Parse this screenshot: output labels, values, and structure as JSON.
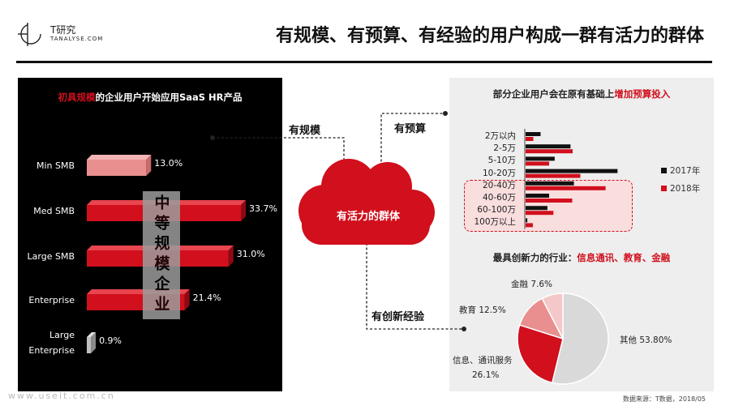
{
  "brand": {
    "name": "T研究",
    "sub": "TANALYSE.COM"
  },
  "page_title": "有规模、有预算、有经验的用户构成一群有活力的群体",
  "colors": {
    "accent": "#d10f1d",
    "series_2017": "#111111",
    "series_2018": "#d10f1d",
    "light_bar": "#e98f90",
    "pie_gray": "#d9d9d9",
    "pie_pink": "#f4c8c9"
  },
  "left_panel": {
    "title_highlight": "初具规模",
    "title_rest": "的企业用户开始应用SaaS HR产品",
    "mid_label": "中等规模企业"
  },
  "cloud": {
    "label": "有活力的群体"
  },
  "connectors": {
    "scale": "有规模",
    "budget": "有预算",
    "experience": "有创新经验"
  },
  "right_panel": {
    "bar_title_prefix": "部分企业用户会在原有基础上",
    "bar_title_highlight": "增加预算投入",
    "pie_title_prefix": "最具创新力的行业：",
    "pie_title_highlight": "信息通讯、教育、金融"
  },
  "chart_data": [
    {
      "type": "bar",
      "orientation": "horizontal",
      "categories": [
        "Min SMB",
        "Med SMB",
        "Large SMB",
        "Enterprise",
        "Large Enterprise"
      ],
      "category_lines": [
        [
          "Min SMB"
        ],
        [
          "Med SMB"
        ],
        [
          "Large SMB"
        ],
        [
          "Enterprise"
        ],
        [
          "Large",
          "Enterprise"
        ]
      ],
      "values": [
        13.0,
        33.7,
        31.0,
        21.4,
        0.9
      ],
      "value_labels": [
        "13.0%",
        "33.7%",
        "31.0%",
        "21.4%",
        "0.9%"
      ],
      "xlim": [
        0,
        33.7
      ]
    },
    {
      "type": "bar",
      "orientation": "horizontal",
      "categories": [
        "2万以内",
        "2-5万",
        "5-10万",
        "10-20万",
        "20-40万",
        "40-60万",
        "60-100万",
        "100万以上"
      ],
      "series": [
        {
          "name": "2017年",
          "values": [
            3.5,
            10.5,
            6.8,
            21.5,
            11.3,
            5.5,
            5.1,
            0.4
          ]
        },
        {
          "name": "2018年",
          "values": [
            1.8,
            11.0,
            5.5,
            12.8,
            18.7,
            10.9,
            6.5,
            1.7
          ]
        }
      ],
      "xlim": [
        0,
        22
      ],
      "highlighted_categories": [
        "20-40万",
        "40-60万",
        "60-100万",
        "100万以上"
      ]
    },
    {
      "type": "pie",
      "slices": [
        {
          "label": "其他",
          "value": 53.8,
          "text": "53.80%"
        },
        {
          "label": "信息、通讯服务",
          "value": 26.1,
          "text": "26.1%"
        },
        {
          "label": "教育",
          "value": 12.5,
          "text": "12.5%"
        },
        {
          "label": "金融",
          "value": 7.6,
          "text": "7.6%"
        }
      ]
    }
  ],
  "source": "数据来源：T数据，2018/05",
  "watermark": "www.useit.com.cn"
}
